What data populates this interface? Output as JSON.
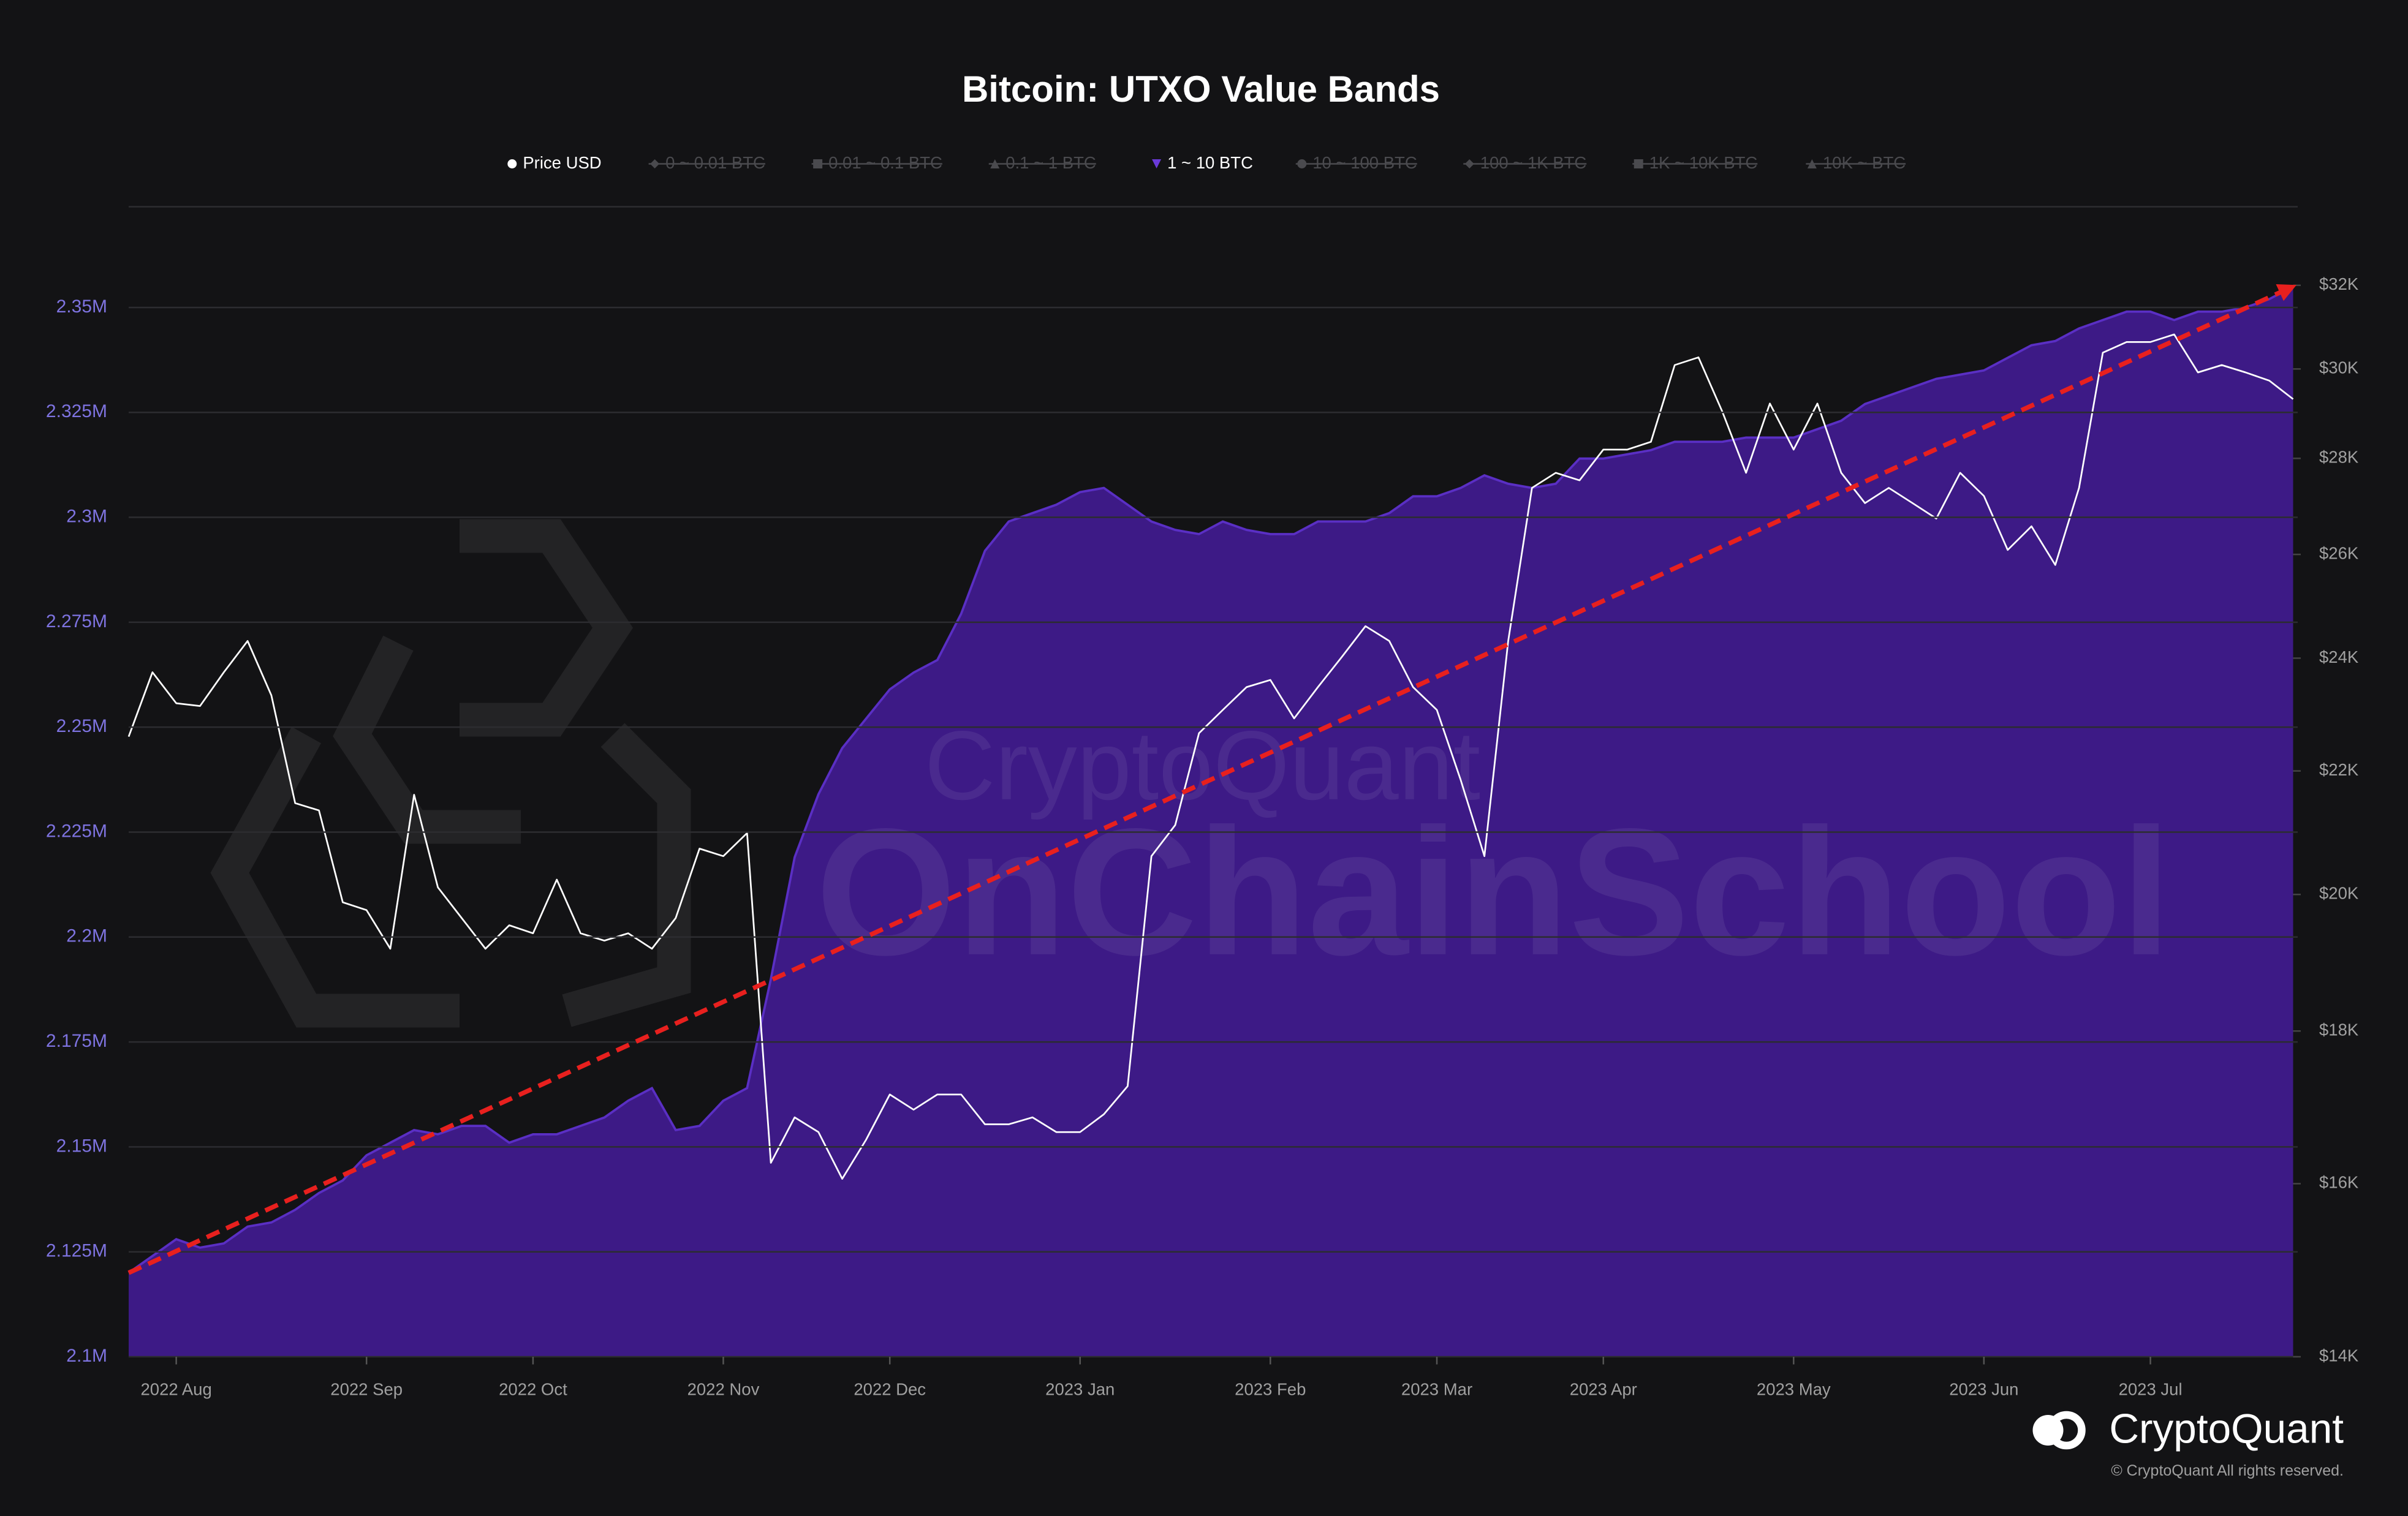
{
  "chart_data": {
    "type": "area",
    "title": "Bitcoin: UTXO Value Bands",
    "watermark": [
      "CryptoQuant",
      "OnChainSchool"
    ],
    "brand": "CryptoQuant",
    "copyright": "© CryptoQuant All rights reserved.",
    "hidden_series": [
      "0 ~ 0.01 BTC",
      "0.01 ~ 0.1 BTC",
      "0.1 ~ 1 BTC",
      "10 ~ 100 BTC",
      "100 ~ 1K BTC",
      "1K ~ 10K BTC",
      "10K ~ BTC"
    ],
    "categories": [
      null,
      null,
      "2022 Aug",
      null,
      null,
      null,
      null,
      null,
      null,
      null,
      "2022 Sep",
      null,
      null,
      null,
      null,
      null,
      null,
      "2022 Oct",
      null,
      null,
      null,
      null,
      null,
      null,
      null,
      "2022 Nov",
      null,
      null,
      null,
      null,
      null,
      null,
      "2022 Dec",
      null,
      null,
      null,
      null,
      null,
      null,
      null,
      "2023 Jan",
      null,
      null,
      null,
      null,
      null,
      null,
      null,
      "2023 Feb",
      null,
      null,
      null,
      null,
      null,
      null,
      "2023 Mar",
      null,
      null,
      null,
      null,
      null,
      null,
      "2023 Apr",
      null,
      null,
      null,
      null,
      null,
      null,
      null,
      "2023 May",
      null,
      null,
      null,
      null,
      null,
      null,
      null,
      "2023 Jun",
      null,
      null,
      null,
      null,
      null,
      null,
      "2023 Jul",
      null,
      null,
      null,
      null,
      null,
      null
    ],
    "series": [
      {
        "name": "Price USD",
        "type": "line",
        "axis": "y2",
        "color": "#ffffff",
        "values": [
          22590,
          23740,
          23180,
          23130,
          23740,
          24320,
          23320,
          21460,
          21340,
          19880,
          19760,
          19180,
          21600,
          20110,
          19640,
          19180,
          19530,
          19410,
          20230,
          19410,
          19300,
          19410,
          19180,
          19640,
          20720,
          20600,
          20970,
          16260,
          16840,
          16650,
          16060,
          16550,
          17140,
          16940,
          17140,
          17140,
          16750,
          16750,
          16840,
          16650,
          16650,
          16880,
          17250,
          20600,
          21100,
          22650,
          23060,
          23470,
          23600,
          22910,
          23470,
          24020,
          24600,
          24320,
          23470,
          23060,
          21850,
          20600,
          24320,
          27370,
          27690,
          27530,
          28190,
          28190,
          28360,
          30090,
          30270,
          29030,
          27690,
          29210,
          28190,
          29210,
          27690,
          27050,
          27370,
          27050,
          26730,
          27690,
          27200,
          26090,
          26570,
          25790,
          27370,
          30380,
          30630,
          30630,
          30810,
          29920,
          30090,
          29920,
          29730,
          29310
        ]
      },
      {
        "name": "1 ~ 10 BTC",
        "type": "area",
        "axis": "y",
        "color": "#3f1a8c",
        "values": [
          2120000,
          2124000,
          2128000,
          2126000,
          2127000,
          2131000,
          2132000,
          2135000,
          2139000,
          2142000,
          2148000,
          2151000,
          2154000,
          2153000,
          2155000,
          2155000,
          2151000,
          2153000,
          2153000,
          2155000,
          2157000,
          2161000,
          2164000,
          2154000,
          2155000,
          2161000,
          2164000,
          2190000,
          2219000,
          2234000,
          2245000,
          2252000,
          2259000,
          2263000,
          2266000,
          2277000,
          2292000,
          2299000,
          2301000,
          2303000,
          2306000,
          2307000,
          2303000,
          2299000,
          2297000,
          2296000,
          2299000,
          2297000,
          2296000,
          2296000,
          2299000,
          2299000,
          2299000,
          2301000,
          2305000,
          2305000,
          2307000,
          2310000,
          2308000,
          2307000,
          2308000,
          2314000,
          2314000,
          2315000,
          2316000,
          2318000,
          2318000,
          2318000,
          2319000,
          2319000,
          2319000,
          2321000,
          2323000,
          2327000,
          2329000,
          2331000,
          2333000,
          2334000,
          2335000,
          2338000,
          2341000,
          2342000,
          2345000,
          2347000,
          2349000,
          2349000,
          2347000,
          2349000,
          2349000,
          2350000,
          2352000,
          2355000
        ]
      }
    ],
    "trend_line": {
      "start": 2120000,
      "end": 2355000,
      "color": "#e8201e"
    },
    "ylim": [
      2100000,
      2374000
    ],
    "yticks": [
      {
        "value": 2100000,
        "label": "2.1M"
      },
      {
        "value": 2125000,
        "label": "2.125M"
      },
      {
        "value": 2150000,
        "label": "2.15M"
      },
      {
        "value": 2175000,
        "label": "2.175M"
      },
      {
        "value": 2200000,
        "label": "2.2M"
      },
      {
        "value": 2225000,
        "label": "2.225M"
      },
      {
        "value": 2250000,
        "label": "2.25M"
      },
      {
        "value": 2275000,
        "label": "2.275M"
      },
      {
        "value": 2300000,
        "label": "2.3M"
      },
      {
        "value": 2325000,
        "label": "2.325M"
      },
      {
        "value": 2350000,
        "label": "2.35M"
      }
    ],
    "y2lim": [
      14000,
      34000
    ],
    "y2_log": true,
    "y2ticks": [
      {
        "value": 14000,
        "label": "$14K"
      },
      {
        "value": 16000,
        "label": "$16K"
      },
      {
        "value": 18000,
        "label": "$18K"
      },
      {
        "value": 20000,
        "label": "$20K"
      },
      {
        "value": 22000,
        "label": "$22K"
      },
      {
        "value": 24000,
        "label": "$24K"
      },
      {
        "value": 26000,
        "label": "$26K"
      },
      {
        "value": 28000,
        "label": "$28K"
      },
      {
        "value": 30000,
        "label": "$30K"
      },
      {
        "value": 32000,
        "label": "$32K"
      }
    ],
    "grid": true
  }
}
